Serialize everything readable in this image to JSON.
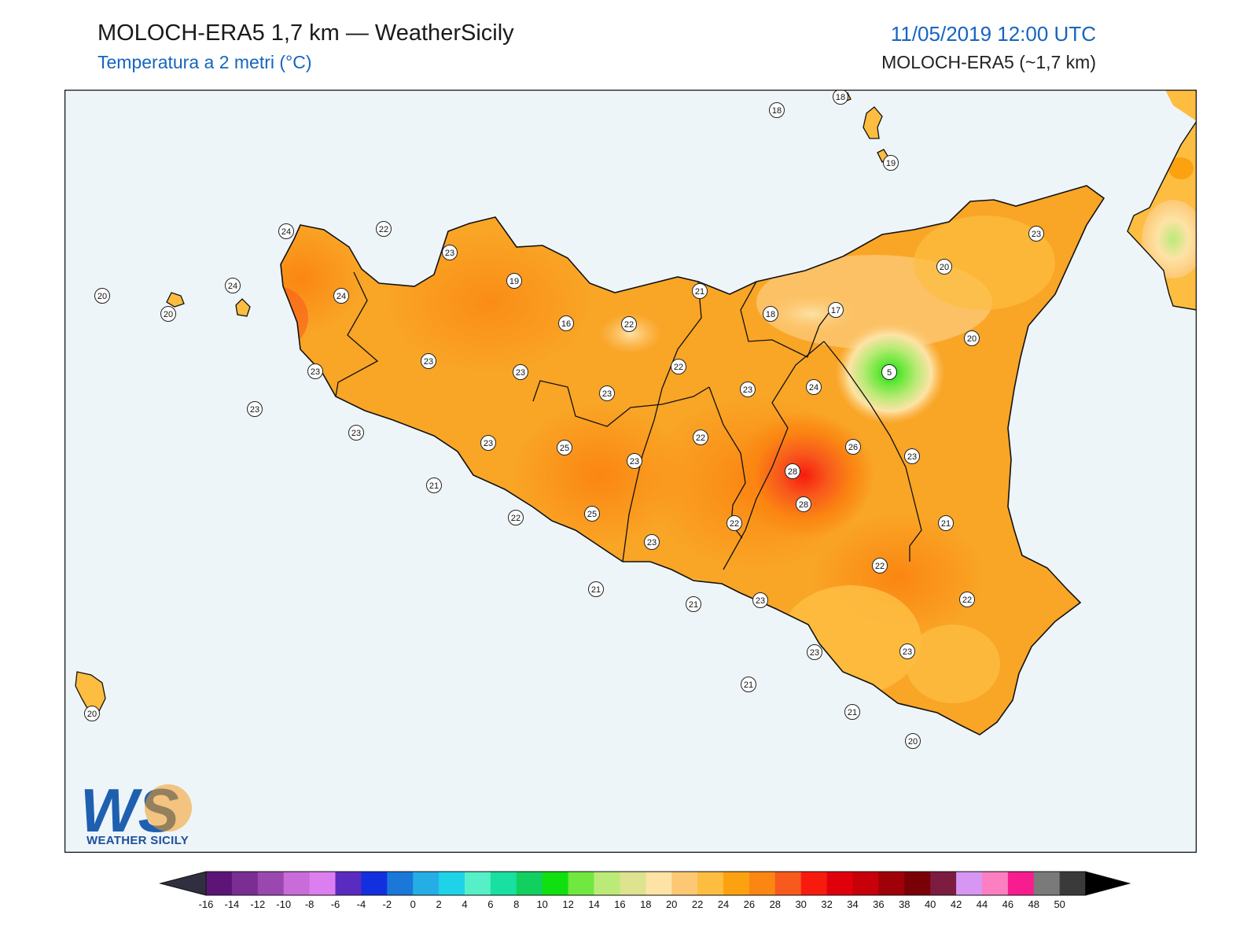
{
  "header": {
    "title": "MOLOCH-ERA5 1,7 km — WeatherSicily",
    "subtitle": "Temperatura a 2 metri (°C)",
    "datetime": "11/05/2019 12:00 UTC",
    "model": "MOLOCH-ERA5 (~1,7 km)"
  },
  "logo": {
    "letters": "WS",
    "name": "WEATHER SICILY"
  },
  "colors": {
    "sea": "#edf5f9",
    "land_base": "#f9a526",
    "frame": "#222222"
  },
  "station_labels": [
    "24",
    "22",
    "23",
    "19",
    "24",
    "24",
    "20",
    "20",
    "23",
    "23",
    "23",
    "23",
    "23",
    "22",
    "16",
    "22",
    "23",
    "21",
    "21",
    "18",
    "17",
    "20",
    "23",
    "20",
    "5",
    "24",
    "23",
    "22",
    "26",
    "23",
    "28",
    "28",
    "25",
    "23",
    "23",
    "25",
    "22",
    "23",
    "22",
    "21",
    "22",
    "22",
    "23",
    "21",
    "21",
    "23",
    "23",
    "21",
    "21",
    "20",
    "18",
    "18",
    "19",
    "20"
  ],
  "legend": {
    "ticks": [
      "-16",
      "-14",
      "-12",
      "-10",
      "-8",
      "-6",
      "-4",
      "-2",
      "0",
      "2",
      "4",
      "6",
      "8",
      "10",
      "12",
      "14",
      "16",
      "18",
      "20",
      "22",
      "24",
      "26",
      "28",
      "30",
      "32",
      "34",
      "36",
      "38",
      "40",
      "42",
      "44",
      "46",
      "48",
      "50"
    ],
    "colors": [
      "#3d0a4d",
      "#5c1577",
      "#7a2d93",
      "#9a48b0",
      "#c96bd9",
      "#dd7ef0",
      "#5a2bc0",
      "#1230e0",
      "#1a78d8",
      "#25aee6",
      "#1ed3e8",
      "#55f0c8",
      "#18e0a0",
      "#12d060",
      "#10e010",
      "#70e840",
      "#bcea78",
      "#dde38e",
      "#fde3a6",
      "#fdc874",
      "#fdbd40",
      "#fca210",
      "#fb8612",
      "#f8591c",
      "#f71b0e",
      "#e0000c",
      "#c7000a",
      "#a00008",
      "#7a0008",
      "#7c1c40",
      "#d796f3",
      "#fb7fc1",
      "#f71d8e",
      "#7a7a7a",
      "#3a3a3a"
    ]
  }
}
